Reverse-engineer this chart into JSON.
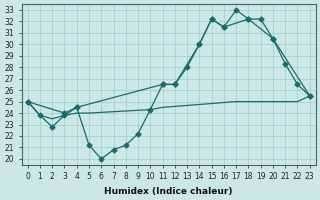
{
  "background_color": "#cce8e4",
  "grid_color": "#99cccc",
  "line_color": "#1a6b6b",
  "xlabel": "Humidex (Indice chaleur)",
  "xlim": [
    -0.5,
    23.5
  ],
  "ylim": [
    19.5,
    33.5
  ],
  "yticks": [
    20,
    21,
    22,
    23,
    24,
    25,
    26,
    27,
    28,
    29,
    30,
    31,
    32,
    33
  ],
  "xticks": [
    0,
    1,
    2,
    3,
    4,
    5,
    6,
    7,
    8,
    9,
    10,
    11,
    12,
    13,
    14,
    15,
    16,
    17,
    18,
    19,
    20,
    21,
    22,
    23
  ],
  "line1_x": [
    0,
    1,
    2,
    3,
    4,
    5,
    6,
    7,
    8,
    9,
    10,
    11,
    12,
    13,
    14,
    15,
    16,
    17,
    18,
    20,
    21,
    22,
    23
  ],
  "line1_y": [
    25.0,
    23.8,
    22.8,
    23.8,
    24.5,
    21.2,
    20.0,
    20.8,
    21.2,
    22.2,
    24.3,
    26.5,
    26.5,
    28.0,
    30.0,
    32.2,
    31.5,
    33.0,
    32.2,
    30.5,
    28.3,
    26.5,
    25.5
  ],
  "line2_x": [
    0,
    3,
    4,
    11,
    12,
    14,
    15,
    16,
    18,
    19,
    20,
    23
  ],
  "line2_y": [
    25.0,
    24.0,
    24.5,
    26.5,
    26.5,
    30.0,
    32.2,
    31.5,
    32.2,
    32.2,
    30.5,
    25.5
  ],
  "line3_x": [
    0,
    1,
    2,
    3,
    4,
    5,
    10,
    11,
    17,
    18,
    19,
    20,
    21,
    22,
    23
  ],
  "line3_y": [
    25.0,
    23.8,
    23.5,
    23.8,
    24.0,
    24.0,
    24.3,
    24.5,
    25.0,
    25.0,
    25.0,
    25.0,
    25.0,
    25.0,
    25.5
  ]
}
